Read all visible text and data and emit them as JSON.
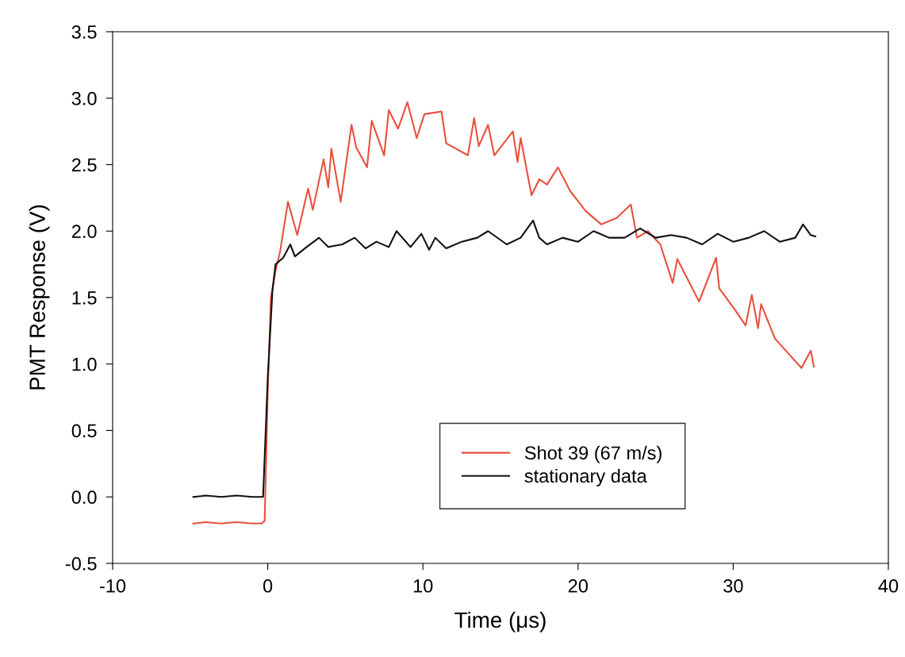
{
  "chart_data": {
    "type": "line",
    "xlabel": "Time (μs)",
    "ylabel": "PMT Response (V)",
    "xlim": [
      -10,
      40
    ],
    "xticks": [
      -10,
      0,
      10,
      20,
      30,
      40
    ],
    "ylim": [
      -0.5,
      3.5
    ],
    "yticks": [
      {
        "value": -0.5,
        "label": "-0.5"
      },
      {
        "value": 0,
        "label": "0.0"
      },
      {
        "value": 0.5,
        "label": "0.5"
      },
      {
        "value": 1,
        "label": "1.0"
      },
      {
        "value": 1.5,
        "label": "1.5"
      },
      {
        "value": 2,
        "label": "2.0"
      },
      {
        "value": 2.5,
        "label": "2.5"
      },
      {
        "value": 3,
        "label": "3.0"
      },
      {
        "value": 3.5,
        "label": "3.5"
      }
    ],
    "grid": false,
    "legend": "bottom right",
    "marker": "none",
    "line_style": "solid",
    "series": [
      {
        "name": "Shot 39 (67 m/s)",
        "color": "#e8503f",
        "x": [
          -4.8,
          -4,
          -3,
          -2,
          -1,
          -0.4,
          -0.2,
          0,
          0.2,
          0.5,
          0.8,
          1.3,
          1.9,
          2.6,
          2.9,
          3.6,
          3.9,
          4.1,
          4.7,
          5.4,
          5.7,
          6.4,
          6.7,
          7.5,
          7.8,
          8.4,
          9.0,
          9.6,
          10.1,
          11.2,
          11.5,
          12.9,
          13.3,
          13.6,
          14.2,
          14.6,
          15.8,
          16.1,
          16.3,
          17.0,
          17.5,
          18.0,
          18.7,
          19.5,
          20.5,
          21.5,
          22.5,
          23.4,
          23.8,
          24.5,
          25.3,
          26.1,
          26.4,
          27.8,
          28.9,
          29.1,
          30.1,
          30.8,
          31.2,
          31.6,
          31.8,
          32.7,
          34.4,
          35.0,
          35.2
        ],
        "values": [
          -0.2,
          -0.19,
          -0.2,
          -0.19,
          -0.2,
          -0.2,
          -0.18,
          0.8,
          1.5,
          1.7,
          1.85,
          2.22,
          1.97,
          2.32,
          2.16,
          2.54,
          2.33,
          2.62,
          2.22,
          2.8,
          2.63,
          2.48,
          2.83,
          2.57,
          2.91,
          2.77,
          2.97,
          2.7,
          2.88,
          2.9,
          2.66,
          2.57,
          2.85,
          2.64,
          2.8,
          2.57,
          2.75,
          2.52,
          2.7,
          2.27,
          2.39,
          2.35,
          2.48,
          2.3,
          2.15,
          2.05,
          2.1,
          2.2,
          1.95,
          2.0,
          1.9,
          1.61,
          1.79,
          1.47,
          1.8,
          1.57,
          1.41,
          1.29,
          1.52,
          1.27,
          1.45,
          1.19,
          0.97,
          1.1,
          0.98
        ]
      },
      {
        "name": "stationary data",
        "color": "#111111",
        "x": [
          -4.8,
          -4,
          -3,
          -2,
          -1,
          -0.3,
          0,
          0.3,
          0.5,
          1.0,
          1.45,
          1.75,
          2.5,
          3.3,
          3.9,
          4.8,
          5.6,
          6.3,
          7.0,
          7.8,
          8.3,
          9.2,
          9.9,
          10.4,
          10.8,
          11.5,
          12.5,
          13.5,
          14.2,
          15.4,
          16.3,
          17.1,
          17.5,
          18.0,
          19.0,
          20.0,
          21.0,
          22.0,
          23.0,
          24.0,
          25.0,
          26.0,
          27.0,
          28.0,
          29.0,
          30.0,
          31.0,
          32.0,
          33.0,
          34.0,
          34.5,
          35.0,
          35.3
        ],
        "values": [
          0.0,
          0.01,
          0.0,
          0.01,
          0.0,
          0.0,
          0.9,
          1.55,
          1.75,
          1.8,
          1.9,
          1.81,
          1.88,
          1.95,
          1.88,
          1.9,
          1.95,
          1.87,
          1.92,
          1.88,
          2.0,
          1.88,
          1.98,
          1.86,
          1.95,
          1.87,
          1.92,
          1.95,
          2.0,
          1.9,
          1.95,
          2.08,
          1.95,
          1.9,
          1.95,
          1.92,
          2.0,
          1.95,
          1.95,
          2.02,
          1.95,
          1.97,
          1.95,
          1.9,
          1.98,
          1.92,
          1.95,
          2.0,
          1.92,
          1.95,
          2.05,
          1.97,
          1.96
        ]
      }
    ]
  }
}
